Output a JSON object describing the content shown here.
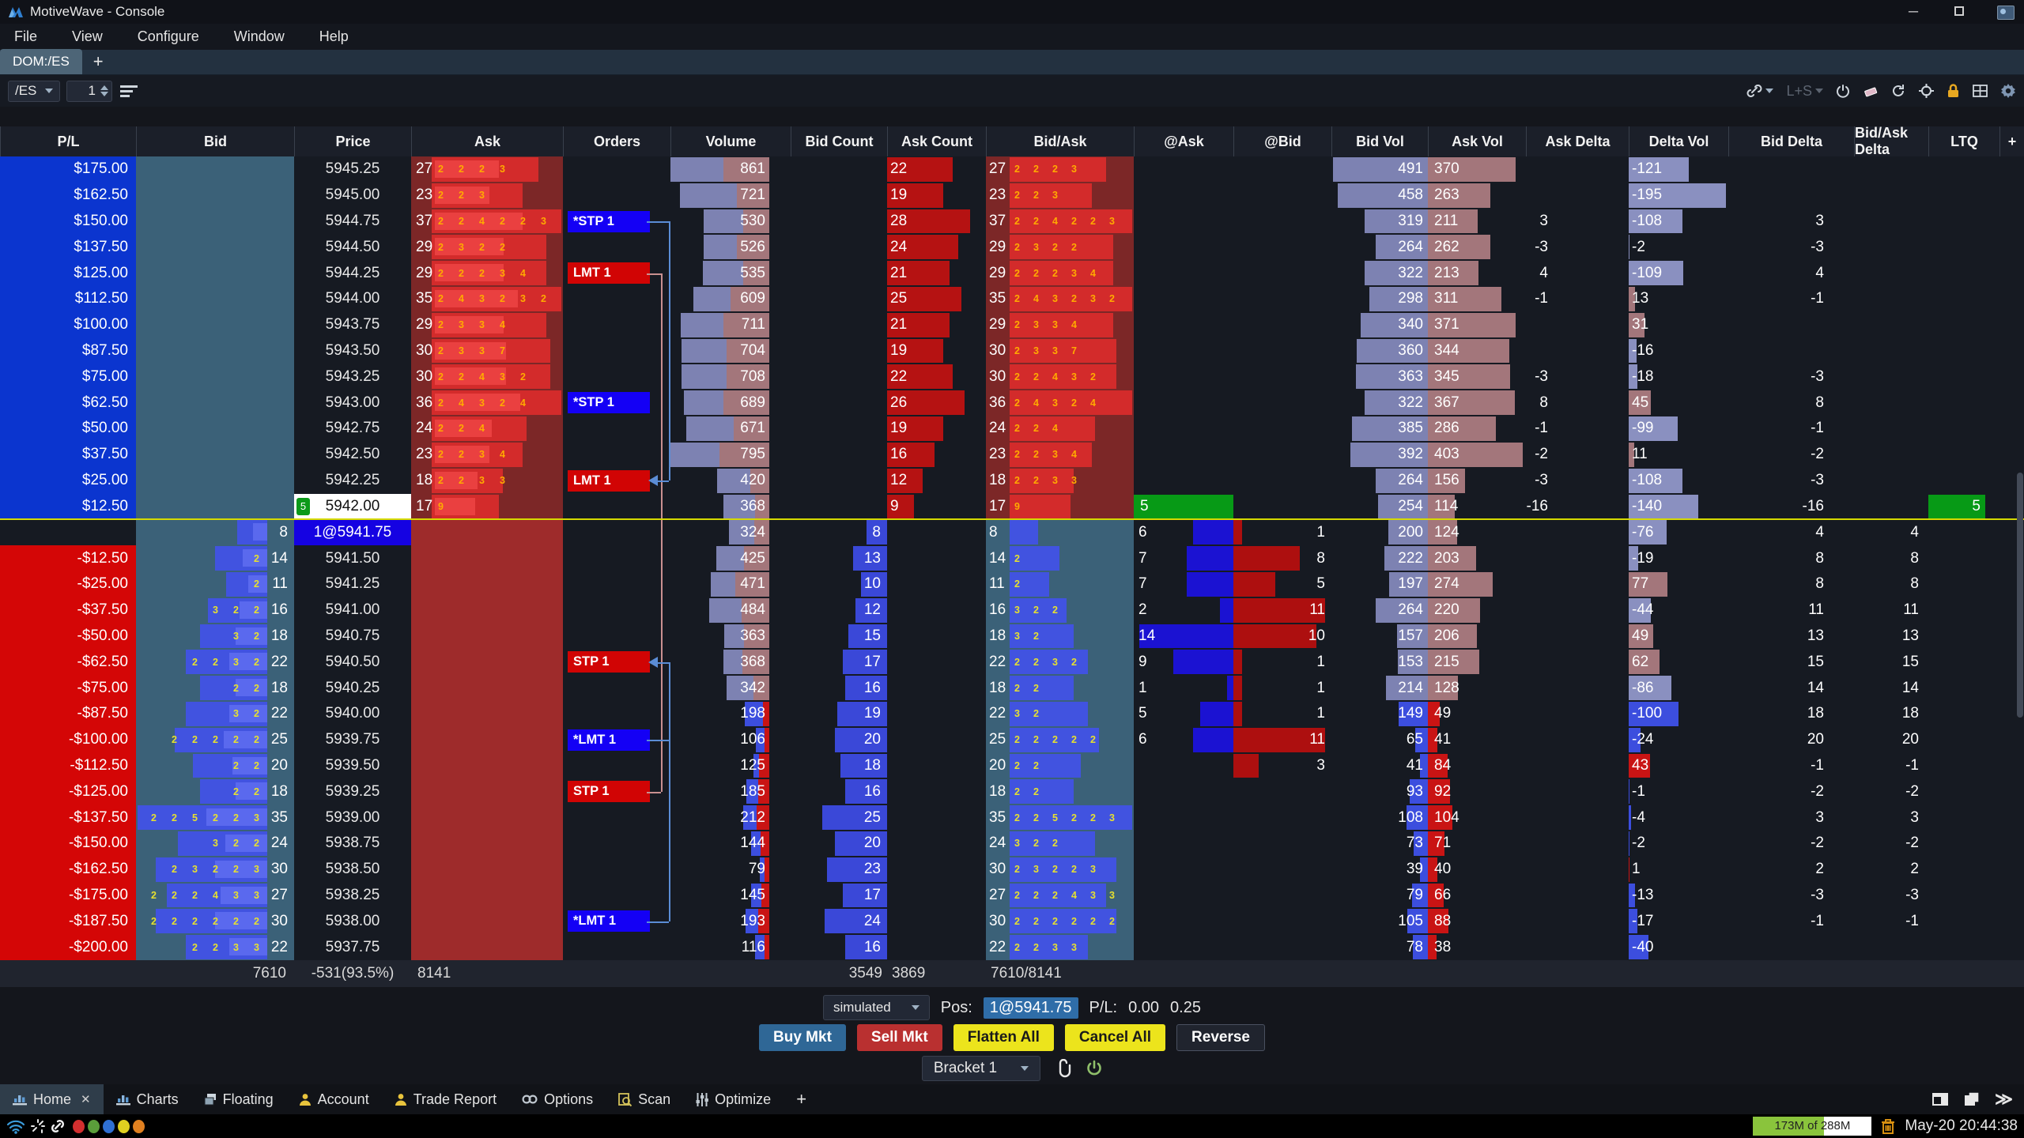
{
  "window": {
    "title": "MotiveWave - Console"
  },
  "menubar": {
    "items": [
      "File",
      "View",
      "Configure",
      "Window",
      "Help"
    ]
  },
  "doctab": {
    "label": "DOM:/ES",
    "add": "+"
  },
  "toolbar": {
    "instrument": "/ES",
    "quantity": "1",
    "lots_label": "L+S"
  },
  "dom": {
    "headers": [
      {
        "key": "pl",
        "label": "P/L"
      },
      {
        "key": "bid",
        "label": "Bid"
      },
      {
        "key": "price",
        "label": "Price"
      },
      {
        "key": "ask",
        "label": "Ask"
      },
      {
        "key": "ord",
        "label": "Orders"
      },
      {
        "key": "vol",
        "label": "Volume"
      },
      {
        "key": "bidc",
        "label": "Bid Count"
      },
      {
        "key": "askc",
        "label": "Ask Count"
      },
      {
        "key": "ba",
        "label": "Bid/Ask"
      },
      {
        "key": "aask",
        "label": "@Ask"
      },
      {
        "key": "abid",
        "label": "@Bid"
      },
      {
        "key": "bvol",
        "label": "Bid Vol"
      },
      {
        "key": "avol",
        "label": "Ask Vol"
      },
      {
        "key": "askd",
        "label": "Ask Delta"
      },
      {
        "key": "dvol",
        "label": "Delta Vol"
      },
      {
        "key": "bidd",
        "label": "Bid Delta"
      },
      {
        "key": "bad",
        "label": "Bid/Ask Delta"
      },
      {
        "key": "ltq",
        "label": "LTQ"
      },
      {
        "key": "plus",
        "label": "+"
      }
    ],
    "rows": [
      {
        "pl": "$175.00",
        "plt": "p",
        "price": "5945.25",
        "pt": "n",
        "ask": 27,
        "ac": [
          2,
          2,
          2,
          3
        ],
        "vol": 861,
        "askc": 22,
        "bvol": 491,
        "avol": 370,
        "askd": "",
        "dvol": -121,
        "bidd": "",
        "bad": "",
        "ord": null,
        "br": false
      },
      {
        "pl": "$162.50",
        "plt": "p",
        "price": "5945.00",
        "pt": "n",
        "ask": 23,
        "ac": [
          2,
          2,
          3
        ],
        "vol": 721,
        "askc": 19,
        "bvol": 458,
        "avol": 263,
        "askd": "",
        "dvol": -195,
        "bidd": "",
        "bad": "",
        "ord": null,
        "br": false
      },
      {
        "pl": "$150.00",
        "plt": "p",
        "price": "5944.75",
        "pt": "n",
        "ask": 37,
        "ac": [
          2,
          2,
          4,
          2,
          2,
          3
        ],
        "vol": 530,
        "askc": 28,
        "bvol": 319,
        "avol": 211,
        "askd": "3",
        "dvol": -108,
        "bidd": "3",
        "bad": "",
        "ord": {
          "t": "*STP 1",
          "c": "b",
          "arrow": false
        },
        "br": false
      },
      {
        "pl": "$137.50",
        "plt": "p",
        "price": "5944.50",
        "pt": "n",
        "ask": 29,
        "ac": [
          2,
          3,
          2,
          2
        ],
        "vol": 526,
        "askc": 24,
        "bvol": 264,
        "avol": 262,
        "askd": "-3",
        "dvol": -2,
        "bidd": "-3",
        "bad": "",
        "ord": null,
        "br": false
      },
      {
        "pl": "$125.00",
        "plt": "p",
        "price": "5944.25",
        "pt": "n",
        "ask": 29,
        "ac": [
          2,
          2,
          2,
          3,
          4
        ],
        "vol": 535,
        "askc": 21,
        "bvol": 322,
        "avol": 213,
        "askd": "4",
        "dvol": -109,
        "bidd": "4",
        "bad": "",
        "ord": {
          "t": "LMT 1",
          "c": "r",
          "arrow": false
        },
        "br": false
      },
      {
        "pl": "$112.50",
        "plt": "p",
        "price": "5944.00",
        "pt": "n",
        "ask": 35,
        "ac": [
          2,
          4,
          3,
          2,
          3,
          2
        ],
        "vol": 609,
        "askc": 25,
        "bvol": 298,
        "avol": 311,
        "askd": "-1",
        "dvol": 13,
        "bidd": "-1",
        "bad": "",
        "ord": null,
        "br": false
      },
      {
        "pl": "$100.00",
        "plt": "p",
        "price": "5943.75",
        "pt": "n",
        "ask": 29,
        "ac": [
          2,
          3,
          3,
          4
        ],
        "vol": 711,
        "askc": 21,
        "bvol": 340,
        "avol": 371,
        "askd": "",
        "dvol": 31,
        "bidd": "",
        "bad": "",
        "ord": null,
        "br": false
      },
      {
        "pl": "$87.50",
        "plt": "p",
        "price": "5943.50",
        "pt": "n",
        "ask": 30,
        "ac": [
          2,
          3,
          3,
          7
        ],
        "vol": 704,
        "askc": 19,
        "bvol": 360,
        "avol": 344,
        "askd": "",
        "dvol": -16,
        "bidd": "",
        "bad": "",
        "ord": null,
        "br": false
      },
      {
        "pl": "$75.00",
        "plt": "p",
        "price": "5943.25",
        "pt": "n",
        "ask": 30,
        "ac": [
          2,
          2,
          4,
          3,
          2
        ],
        "vol": 708,
        "askc": 22,
        "bvol": 363,
        "avol": 345,
        "askd": "-3",
        "dvol": -18,
        "bidd": "-3",
        "bad": "",
        "ord": null,
        "br": false
      },
      {
        "pl": "$62.50",
        "plt": "p",
        "price": "5943.00",
        "pt": "n",
        "ask": 36,
        "ac": [
          2,
          4,
          3,
          2,
          4
        ],
        "vol": 689,
        "askc": 26,
        "bvol": 322,
        "avol": 367,
        "askd": "8",
        "dvol": 45,
        "bidd": "8",
        "bad": "",
        "ord": {
          "t": "*STP 1",
          "c": "b",
          "arrow": false
        },
        "br": false
      },
      {
        "pl": "$50.00",
        "plt": "p",
        "price": "5942.75",
        "pt": "n",
        "ask": 24,
        "ac": [
          2,
          2,
          4
        ],
        "vol": 671,
        "askc": 19,
        "bvol": 385,
        "avol": 286,
        "askd": "-1",
        "dvol": -99,
        "bidd": "-1",
        "bad": "",
        "ord": null,
        "br": false
      },
      {
        "pl": "$37.50",
        "plt": "p",
        "price": "5942.50",
        "pt": "n",
        "ask": 23,
        "ac": [
          2,
          2,
          3,
          4
        ],
        "vol": 795,
        "askc": 16,
        "bvol": 392,
        "avol": 403,
        "askd": "-2",
        "dvol": 11,
        "bidd": "-2",
        "bad": "",
        "ord": null,
        "br": false
      },
      {
        "pl": "$25.00",
        "plt": "p",
        "price": "5942.25",
        "pt": "n",
        "ask": 18,
        "ac": [
          2,
          2,
          3,
          3
        ],
        "vol": 420,
        "askc": 12,
        "bvol": 264,
        "avol": 156,
        "askd": "-3",
        "dvol": -108,
        "bidd": "-3",
        "bad": "",
        "ord": {
          "t": "LMT 1",
          "c": "r",
          "arrow": true
        },
        "br": false
      },
      {
        "pl": "$12.50",
        "plt": "p",
        "price": "5942.00",
        "pt": "c",
        "badge": "5",
        "ask": 17,
        "ac": [
          9
        ],
        "vol": 368,
        "askc": 9,
        "ag": "5",
        "bvol": 254,
        "avol": 114,
        "askd": "-16",
        "dvol": -140,
        "bidd": "-16",
        "bad": "",
        "ltq": "5",
        "ord": null,
        "br": false
      },
      {
        "pl": "",
        "plt": "",
        "price": "1@5941.75",
        "pt": "p",
        "bid": 8,
        "bc": [],
        "vol": 324,
        "bidc": 8,
        "aask": 6,
        "abid": 1,
        "bvol": 200,
        "avol": 124,
        "askd": "",
        "dvol": -76,
        "bidd": "4",
        "bad": "4",
        "ord": null,
        "br": false
      },
      {
        "pl": "-$12.50",
        "plt": "n",
        "price": "5941.50",
        "pt": "n",
        "bid": 14,
        "bc": [
          2
        ],
        "vol": 425,
        "bidc": 13,
        "aask": 7,
        "abid": 8,
        "bvol": 222,
        "avol": 203,
        "askd": "",
        "dvol": -19,
        "bidd": "8",
        "bad": "8",
        "ord": null,
        "br": false
      },
      {
        "pl": "-$25.00",
        "plt": "n",
        "price": "5941.25",
        "pt": "n",
        "bid": 11,
        "bc": [
          2
        ],
        "vol": 471,
        "bidc": 10,
        "aask": 7,
        "abid": 5,
        "bvol": 197,
        "avol": 274,
        "askd": "",
        "dvol": 77,
        "bidd": "8",
        "bad": "8",
        "ord": null,
        "br": false
      },
      {
        "pl": "-$37.50",
        "plt": "n",
        "price": "5941.00",
        "pt": "n",
        "bid": 16,
        "bc": [
          3,
          2,
          2
        ],
        "vol": 484,
        "bidc": 12,
        "aask": 2,
        "abid": 11,
        "bvol": 264,
        "avol": 220,
        "askd": "",
        "dvol": -44,
        "bidd": "11",
        "bad": "11",
        "ord": null,
        "br": false
      },
      {
        "pl": "-$50.00",
        "plt": "n",
        "price": "5940.75",
        "pt": "n",
        "bid": 18,
        "bc": [
          3,
          2
        ],
        "vol": 363,
        "bidc": 15,
        "aask": 14,
        "abid": 10,
        "bvol": 157,
        "avol": 206,
        "askd": "",
        "dvol": 49,
        "bidd": "13",
        "bad": "13",
        "ord": null,
        "br": false
      },
      {
        "pl": "-$62.50",
        "plt": "n",
        "price": "5940.50",
        "pt": "n",
        "bid": 22,
        "bc": [
          2,
          2,
          3,
          2
        ],
        "vol": 368,
        "bidc": 17,
        "aask": 9,
        "abid": 1,
        "bvol": 153,
        "avol": 215,
        "askd": "",
        "dvol": 62,
        "bidd": "15",
        "bad": "15",
        "ord": {
          "t": "STP 1",
          "c": "r",
          "arrow": true
        },
        "br": false
      },
      {
        "pl": "-$75.00",
        "plt": "n",
        "price": "5940.25",
        "pt": "n",
        "bid": 18,
        "bc": [
          2,
          2
        ],
        "vol": 342,
        "bidc": 16,
        "aask": 1,
        "abid": 1,
        "bvol": 214,
        "avol": 128,
        "askd": "",
        "dvol": -86,
        "bidd": "14",
        "bad": "14",
        "ord": null,
        "br": false
      },
      {
        "pl": "-$87.50",
        "plt": "n",
        "price": "5940.00",
        "pt": "n",
        "bid": 22,
        "bc": [
          3,
          2
        ],
        "vol": 198,
        "bidc": 19,
        "aask": 5,
        "abid": 1,
        "bvol": 149,
        "avol": 49,
        "askd": "",
        "dvol": -100,
        "bidd": "18",
        "bad": "18",
        "ord": null,
        "br": true
      },
      {
        "pl": "-$100.00",
        "plt": "n",
        "price": "5939.75",
        "pt": "n",
        "bid": 25,
        "bc": [
          2,
          2,
          2,
          2,
          2
        ],
        "vol": 106,
        "bidc": 20,
        "aask": 6,
        "abid": 11,
        "bvol": 65,
        "avol": 41,
        "askd": "",
        "dvol": -24,
        "bidd": "20",
        "bad": "20",
        "ord": {
          "t": "*LMT 1",
          "c": "b",
          "arrow": false
        },
        "br": true
      },
      {
        "pl": "-$112.50",
        "plt": "n",
        "price": "5939.50",
        "pt": "n",
        "bid": 20,
        "bc": [
          2,
          2
        ],
        "vol": 125,
        "bidc": 18,
        "abid": 3,
        "bvol": 41,
        "avol": 84,
        "askd": "",
        "dvol": 43,
        "bidd": "-1",
        "bad": "-1",
        "ord": null,
        "br": true
      },
      {
        "pl": "-$125.00",
        "plt": "n",
        "price": "5939.25",
        "pt": "n",
        "bid": 18,
        "bc": [
          2,
          2
        ],
        "vol": 185,
        "bidc": 16,
        "bvol": 93,
        "avol": 92,
        "askd": "",
        "dvol": -1,
        "bidd": "-2",
        "bad": "-2",
        "ord": {
          "t": "STP 1",
          "c": "r",
          "arrow": false
        },
        "br": true
      },
      {
        "pl": "-$137.50",
        "plt": "n",
        "price": "5939.00",
        "pt": "n",
        "bid": 35,
        "bc": [
          2,
          2,
          5,
          2,
          2,
          3
        ],
        "vol": 212,
        "bidc": 25,
        "bvol": 108,
        "avol": 104,
        "askd": "",
        "dvol": -4,
        "bidd": "3",
        "bad": "3",
        "ord": null,
        "br": true
      },
      {
        "pl": "-$150.00",
        "plt": "n",
        "price": "5938.75",
        "pt": "n",
        "bid": 24,
        "bc": [
          3,
          2,
          2
        ],
        "vol": 144,
        "bidc": 20,
        "bvol": 73,
        "avol": 71,
        "askd": "",
        "dvol": -2,
        "bidd": "-2",
        "bad": "-2",
        "ord": null,
        "br": true
      },
      {
        "pl": "-$162.50",
        "plt": "n",
        "price": "5938.50",
        "pt": "n",
        "bid": 30,
        "bc": [
          2,
          3,
          2,
          2,
          3
        ],
        "vol": 79,
        "bidc": 23,
        "bvol": 39,
        "avol": 40,
        "askd": "",
        "dvol": 1,
        "bidd": "2",
        "bad": "2",
        "ord": null,
        "br": true
      },
      {
        "pl": "-$175.00",
        "plt": "n",
        "price": "5938.25",
        "pt": "n",
        "bid": 27,
        "bc": [
          2,
          2,
          2,
          4,
          3,
          3
        ],
        "vol": 145,
        "bidc": 17,
        "bvol": 79,
        "avol": 66,
        "askd": "",
        "dvol": -13,
        "bidd": "-3",
        "bad": "-3",
        "ord": null,
        "br": true
      },
      {
        "pl": "-$187.50",
        "plt": "n",
        "price": "5938.00",
        "pt": "n",
        "bid": 30,
        "bc": [
          2,
          2,
          2,
          2,
          2,
          2
        ],
        "vol": 193,
        "bidc": 24,
        "bvol": 105,
        "avol": 88,
        "askd": "",
        "dvol": -17,
        "bidd": "-1",
        "bad": "-1",
        "ord": {
          "t": "*LMT 1",
          "c": "b",
          "arrow": false
        },
        "br": true
      },
      {
        "pl": "-$200.00",
        "plt": "n",
        "price": "5937.75",
        "pt": "n",
        "bid": 22,
        "bc": [
          2,
          2,
          3,
          3
        ],
        "vol": 116,
        "bidc": 16,
        "bvol": 78,
        "avol": 38,
        "askd": "",
        "dvol": -40,
        "bidd": "",
        "bad": "",
        "ord": null,
        "br": true
      }
    ],
    "totals": {
      "bid": "7610",
      "price": "-531(93.5%)",
      "ask": "8141",
      "bid_count": "3549",
      "ask_count": "3869",
      "bid_ask": "7610/8141"
    }
  },
  "account": {
    "name": "simulated",
    "pos_label": "Pos:",
    "pos_value": "1@5941.75",
    "pl_label": "P/L:",
    "pl_open": "0.00",
    "pl_total": "0.25"
  },
  "trade_buttons": [
    {
      "label": "Buy Mkt",
      "bg": "#2f6796",
      "fg": "#ffffff"
    },
    {
      "label": "Sell Mkt",
      "bg": "#b93030",
      "fg": "#ffffff"
    },
    {
      "label": "Flatten All",
      "bg": "#ece41c",
      "fg": "#1a1a1a"
    },
    {
      "label": "Cancel All",
      "bg": "#ece41c",
      "fg": "#1a1a1a"
    },
    {
      "label": "Reverse",
      "bg": "#20242e",
      "fg": "#ffffff"
    }
  ],
  "bracket": {
    "label": "Bracket 1"
  },
  "bottom_tabs": [
    {
      "label": "Home",
      "icon": "chart",
      "active": true,
      "closable": true
    },
    {
      "label": "Charts",
      "icon": "chart",
      "active": false
    },
    {
      "label": "Floating",
      "icon": "window",
      "active": false
    },
    {
      "label": "Account",
      "icon": "person",
      "active": false
    },
    {
      "label": "Trade Report",
      "icon": "person",
      "active": false
    },
    {
      "label": "Options",
      "icon": "chain",
      "active": false
    },
    {
      "label": "Scan",
      "icon": "scan",
      "active": false
    },
    {
      "label": "Optimize",
      "icon": "sliders",
      "active": false
    },
    {
      "label": "+",
      "icon": "plus",
      "active": false
    }
  ],
  "statusbar": {
    "dots": [
      "#d32f2f",
      "#5a9e3a",
      "#2f6fd3",
      "#e0d020",
      "#e08020"
    ],
    "memory": "173M of 288M",
    "memory_pct": 60,
    "time": "May-20 20:44:38"
  },
  "colors": {
    "pl_pos": "#0b35cf",
    "pl_neg": "#d40606",
    "steel": "#3b6178",
    "maroon": "#7c2727",
    "ask_solid": "#9e2b2b",
    "heat_red": "#d32b2b",
    "heat_red2": "#ea4040",
    "heat_blue": "#4153e0",
    "heat_blue2": "#5a69ee",
    "vol_purple": "#7d82b2",
    "vol_rose": "#a3767b",
    "bright_blue": "#3c4ede",
    "bright_red": "#c91414",
    "bidcount_bar": "#3a48d8",
    "askcount_bar": "#b51212",
    "atask_bar": "#1b12d2",
    "atbid_bar": "#ad0f0f",
    "green": "#079a16",
    "pos_blue": "#1502e2",
    "cur_line": "#d6da00",
    "cluster_orange": "#ffaa00",
    "cluster_yellow": "#e6e030"
  }
}
